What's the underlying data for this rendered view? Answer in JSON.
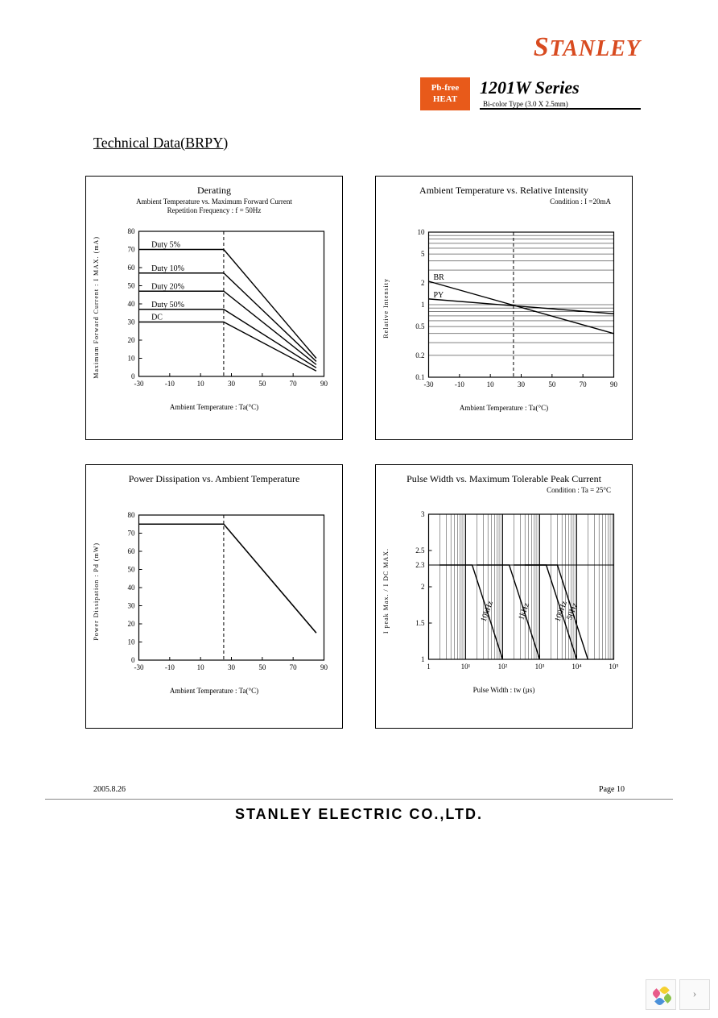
{
  "header": {
    "logo_text": "TANLEY",
    "badge_line1": "Pb-free",
    "badge_line2": "HEAT",
    "series_title": "1201W Series",
    "series_sub": "Bi-color Type (3.0 X 2.5mm)"
  },
  "section_title": "Technical Data(BRPY)",
  "charts": {
    "derating": {
      "title": "Derating",
      "sub1": "Ambient Temperature vs. Maximum Forward Current",
      "sub2": "Repetition Frequency : f = 50Hz",
      "ylabel": "Maximum Forward Current : I    MAX. (mA)",
      "xlabel": "Ambient Temperature : Ta(°C)",
      "xlim": [
        -30,
        90
      ],
      "xtick_step": 20,
      "ylim": [
        0,
        80
      ],
      "ytick_step": 10,
      "dashed_x": 25,
      "series": [
        {
          "label": "Duty 5%",
          "flat_y": 70,
          "x_label": -25
        },
        {
          "label": "Duty 10%",
          "flat_y": 57,
          "x_label": -25
        },
        {
          "label": "Duty 20%",
          "flat_y": 47,
          "x_label": -25
        },
        {
          "label": "Duty 50%",
          "flat_y": 37,
          "x_label": -25
        },
        {
          "label": "DC",
          "flat_y": 30,
          "x_label": -25
        }
      ],
      "converge_x": 85,
      "converge_y_low": 3,
      "converge_y_high": 10,
      "line_color": "#000000",
      "background_color": "#ffffff"
    },
    "relintensity": {
      "title": "Ambient Temperature vs. Relative Intensity",
      "condition": "Condition : I    =20mA",
      "ylabel": "Relative Intensity",
      "xlabel": "Ambient Temperature : Ta(°C)",
      "xlim": [
        -30,
        90
      ],
      "xtick_step": 20,
      "ylim": [
        0.1,
        10
      ],
      "ytype": "log",
      "yticks": [
        0.1,
        0.2,
        0.5,
        1,
        2,
        5,
        10
      ],
      "dashed_x": 25,
      "series": [
        {
          "label": "BR",
          "points": [
            [
              -30,
              2.1
            ],
            [
              90,
              0.4
            ]
          ]
        },
        {
          "label": "PY",
          "points": [
            [
              -30,
              1.2
            ],
            [
              90,
              0.75
            ]
          ]
        }
      ],
      "line_color": "#000000"
    },
    "power": {
      "title": "Power Dissipation vs. Ambient Temperature",
      "ylabel": "Power Dissipation : Pd    (mW)",
      "xlabel": "Ambient Temperature : Ta(°C)",
      "xlim": [
        -30,
        90
      ],
      "xtick_step": 20,
      "ylim": [
        0,
        80
      ],
      "ytick_step": 10,
      "dashed_x": 25,
      "series": [
        {
          "points": [
            [
              -30,
              75
            ],
            [
              25,
              75
            ],
            [
              85,
              15
            ]
          ]
        }
      ],
      "line_color": "#000000"
    },
    "pulse": {
      "title": "Pulse Width vs. Maximum Tolerable Peak Current",
      "condition": "Condition : Ta = 25°C",
      "ylabel": "I peak Max. / I DC MAX.",
      "xlabel": "Pulse Width : tw      (µs)",
      "xlim": [
        1,
        100000
      ],
      "xtype": "log",
      "xticks": [
        "1",
        "10¹",
        "10²",
        "10³",
        "10⁴",
        "10⁵"
      ],
      "ylim": [
        1,
        3
      ],
      "ytick_step": 0.5,
      "extra_ytick": 2.3,
      "series": [
        {
          "label": "10kHz",
          "points": [
            [
              2,
              2.3
            ],
            [
              15,
              2.3
            ],
            [
              100,
              1
            ]
          ]
        },
        {
          "label": "1kHz",
          "points": [
            [
              20,
              2.3
            ],
            [
              150,
              2.3
            ],
            [
              1000,
              1
            ]
          ]
        },
        {
          "label": "100Hz",
          "points": [
            [
              200,
              2.3
            ],
            [
              1500,
              2.3
            ],
            [
              10000,
              1
            ]
          ]
        },
        {
          "label": "50Hz",
          "points": [
            [
              400,
              2.3
            ],
            [
              3000,
              2.3
            ],
            [
              20000,
              1
            ]
          ]
        }
      ],
      "line_color": "#000000"
    }
  },
  "footer": {
    "date": "2005.8.26",
    "page": "Page 10",
    "company": "STANLEY ELECTRIC CO.,LTD."
  },
  "nav": {
    "petal_colors": [
      "#f5d030",
      "#8bc34a",
      "#4a90d9",
      "#e85a8a"
    ]
  }
}
